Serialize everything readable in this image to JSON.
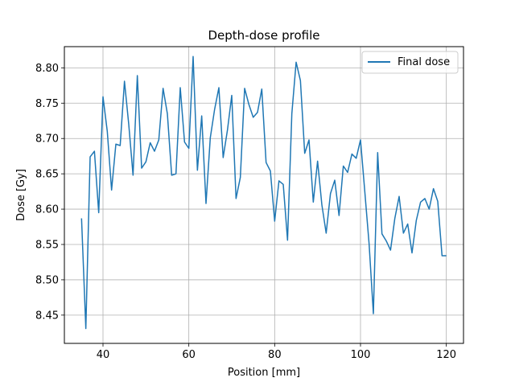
{
  "chart_data": {
    "type": "line",
    "title": "Depth-dose profile",
    "xlabel": "Position [mm]",
    "ylabel": "Dose [Gy]",
    "xlim": [
      31,
      124
    ],
    "ylim": [
      8.41,
      8.83
    ],
    "xticks": [
      40,
      60,
      80,
      100,
      120
    ],
    "yticks": [
      8.45,
      8.5,
      8.55,
      8.6,
      8.65,
      8.7,
      8.75,
      8.8
    ],
    "xtick_labels": [
      "40",
      "60",
      "80",
      "100",
      "120"
    ],
    "ytick_labels": [
      "8.45",
      "8.50",
      "8.55",
      "8.60",
      "8.65",
      "8.70",
      "8.75",
      "8.80"
    ],
    "grid": true,
    "legend_position": "top-right",
    "line_color": "#1f77b4",
    "series": [
      {
        "name": "Final dose",
        "x": [
          35,
          36,
          37,
          38,
          39,
          40,
          41,
          42,
          43,
          44,
          45,
          46,
          47,
          48,
          49,
          50,
          51,
          52,
          53,
          54,
          55,
          56,
          57,
          58,
          59,
          60,
          61,
          62,
          63,
          64,
          65,
          66,
          67,
          68,
          69,
          70,
          71,
          72,
          73,
          74,
          75,
          76,
          77,
          78,
          79,
          80,
          81,
          82,
          83,
          84,
          85,
          86,
          87,
          88,
          89,
          90,
          91,
          92,
          93,
          94,
          95,
          96,
          97,
          98,
          99,
          100,
          101,
          102,
          103,
          104,
          105,
          106,
          107,
          108,
          109,
          110,
          111,
          112,
          113,
          114,
          115,
          116,
          117,
          118,
          119,
          120
        ],
        "y": [
          8.587,
          8.431,
          8.674,
          8.682,
          8.595,
          8.759,
          8.71,
          8.627,
          8.692,
          8.69,
          8.781,
          8.72,
          8.648,
          8.789,
          8.658,
          8.667,
          8.694,
          8.682,
          8.698,
          8.771,
          8.735,
          8.648,
          8.65,
          8.772,
          8.695,
          8.686,
          8.816,
          8.655,
          8.732,
          8.608,
          8.701,
          8.741,
          8.772,
          8.673,
          8.712,
          8.761,
          8.615,
          8.645,
          8.771,
          8.748,
          8.73,
          8.737,
          8.77,
          8.666,
          8.654,
          8.583,
          8.64,
          8.635,
          8.556,
          8.735,
          8.808,
          8.782,
          8.679,
          8.698,
          8.61,
          8.668,
          8.606,
          8.566,
          8.622,
          8.641,
          8.591,
          8.661,
          8.652,
          8.678,
          8.672,
          8.698,
          8.625,
          8.551,
          8.452,
          8.68,
          8.565,
          8.555,
          8.542,
          8.587,
          8.618,
          8.566,
          8.579,
          8.538,
          8.584,
          8.61,
          8.615,
          8.6,
          8.629,
          8.611,
          8.534,
          8.534
        ]
      }
    ]
  }
}
